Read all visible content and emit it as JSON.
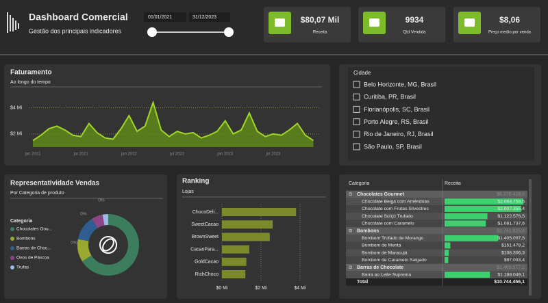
{
  "header": {
    "title": "Dashboard Comercial",
    "subtitle": "Gestão dos principais indicadores",
    "date_start": "01/01/2021",
    "date_end": "31/12/2023"
  },
  "kpis": [
    {
      "value": "$80,07 Mil",
      "label": "Receita"
    },
    {
      "value": "9934",
      "label": "Qtd Vendida"
    },
    {
      "value": "$8,06",
      "label": "Preço medio por venda"
    }
  ],
  "faturamento": {
    "type": "area",
    "title": "Faturamento",
    "subtitle": "Ao longo do tempo",
    "color": "#9fd629",
    "categories": [
      "jan 2021",
      null,
      null,
      null,
      null,
      null,
      "jul 2021",
      null,
      null,
      null,
      null,
      null,
      "jan 2022",
      null,
      null,
      null,
      null,
      null,
      "jul 2022",
      null,
      null,
      null,
      null,
      null,
      "jan 2023",
      null,
      null,
      null,
      null,
      null,
      "jul 2023",
      null,
      null,
      null,
      null,
      null
    ],
    "values": [
      1.5,
      1.9,
      2.4,
      2.6,
      2.3,
      1.9,
      1.8,
      2.8,
      2.1,
      1.7,
      1.6,
      2.4,
      3.4,
      2.2,
      2.6,
      4.4,
      2.3,
      1.8,
      2.2,
      2.0,
      2.1,
      1.7,
      1.9,
      2.2,
      3.0,
      2.0,
      2.3,
      3.6,
      2.2,
      1.8,
      2.0,
      1.9,
      2.3,
      2.8,
      1.9,
      1.5
    ],
    "ylim": [
      1,
      4.6
    ],
    "yticks": [
      {
        "value": 2,
        "label": "$2 Mi"
      },
      {
        "value": 4,
        "label": "$4 Mi"
      }
    ],
    "grid": true
  },
  "cidade": {
    "title": "Cidade",
    "items": [
      "Belo Horizonte, MG, Brasil",
      "Curitiba, PR, Brasil",
      "Florianópolis, SC, Brasil",
      "Porto Alegre, RS, Brasil",
      "Rio de Janeiro, RJ, Brasil",
      "São Paulo, SP, Brasil"
    ]
  },
  "representatividade": {
    "type": "donut",
    "title": "Representatividade Vendas",
    "subtitle": "Por Categoria de produto",
    "legend_title": "Categoria",
    "series": [
      {
        "name": "Chocolates Gou...",
        "color": "#3b7d5c",
        "value": 66
      },
      {
        "name": "Bombons",
        "color": "#9aa832",
        "value": 12
      },
      {
        "name": "Barras de Choc...",
        "color": "#2f5d8f",
        "value": 13
      },
      {
        "name": "Ovos de Páscoa",
        "color": "#8e4585",
        "value": 6
      },
      {
        "name": "Trufas",
        "color": "#9ab8e8",
        "value": 3
      }
    ],
    "annotations": [
      "0%",
      "0%",
      "0%"
    ]
  },
  "ranking": {
    "type": "hbar",
    "title": "Ranking",
    "subtitle": "Lojas",
    "color": "#7d8a2a",
    "categories": [
      "ChocoDeli...",
      "SweetCacao",
      "BrownSweet",
      "CacaoPara...",
      "GoldCacao",
      "RichChoco"
    ],
    "values": [
      3.8,
      2.6,
      2.45,
      1.4,
      1.25,
      1.2
    ],
    "xlim": [
      0,
      4.3
    ],
    "xticks": [
      {
        "value": 0,
        "label": "$0 Mi"
      },
      {
        "value": 2,
        "label": "$2 Mi"
      },
      {
        "value": 4,
        "label": "$4 Mi"
      }
    ]
  },
  "table": {
    "columns": [
      "Categoria",
      "Receita"
    ],
    "groups": [
      {
        "name": "Chocolates Gourmet",
        "total": "$6.276.428,0",
        "rows": [
          {
            "name": "Chocolate Belga com Amêndoas",
            "value": 2064758.5,
            "label": "$2.064.758,5"
          },
          {
            "name": "Chocolate com Frutas Silvestres",
            "value": 2007355.4,
            "label": "$2.007.355,4"
          },
          {
            "name": "Chocolate Suíço Trufado",
            "value": 1122576.5,
            "label": "$1.122.576,5"
          },
          {
            "name": "Chocolate com Caramelo",
            "value": 1081737.6,
            "label": "$1.081.737,6"
          }
        ]
      },
      {
        "name": "Bombons",
        "total": "$1.761.825,4",
        "rows": [
          {
            "name": "Bombom Trufado de Morango",
            "value": 1405007.5,
            "label": "$1.405.007,5"
          },
          {
            "name": "Bombom de Menta",
            "value": 151478.2,
            "label": "$151.478,2"
          },
          {
            "name": "Bombom de Maracujá",
            "value": 108306.3,
            "label": "$108.306,3"
          },
          {
            "name": "Bombom de Caramelo Salgado",
            "value": 97033.4,
            "label": "$97.033,4"
          }
        ]
      },
      {
        "name": "Barras de Chocolate",
        "total": "$1.469.577,2",
        "rows": [
          {
            "name": "Barra ao Leite Suprema",
            "value": 1188049.1,
            "label": "$1.188.049,1"
          }
        ]
      }
    ],
    "total_label": "Total",
    "total": "$10.744.456,1"
  }
}
